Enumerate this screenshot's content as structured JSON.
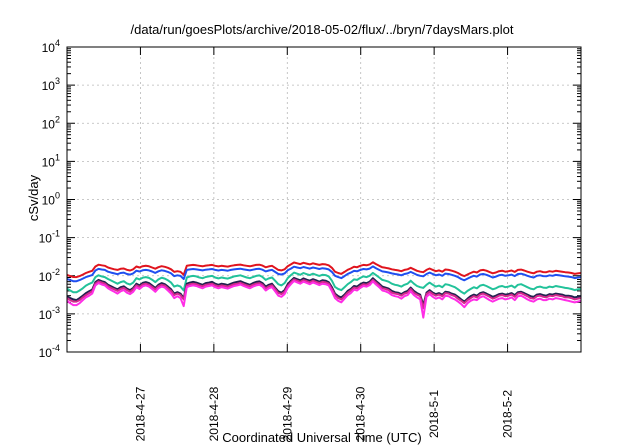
{
  "chart_data": {
    "type": "line",
    "title": "/data/run/goesPlots/archive/2018-05-02/flux/../bryn/7daysMars.plot",
    "xlabel": "Coordinated Universal Time (UTC)",
    "ylabel": "cSv/day",
    "y_scale": "log",
    "ylim_exponents": [
      -4,
      4
    ],
    "y_ticks": [
      {
        "base": "10",
        "exp": "-4"
      },
      {
        "base": "10",
        "exp": "-3"
      },
      {
        "base": "10",
        "exp": "-2"
      },
      {
        "base": "10",
        "exp": "-1"
      },
      {
        "base": "10",
        "exp": "0"
      },
      {
        "base": "10",
        "exp": "1"
      },
      {
        "base": "10",
        "exp": "2"
      },
      {
        "base": "10",
        "exp": "3"
      },
      {
        "base": "10",
        "exp": "4"
      }
    ],
    "x_range_days": [
      "2018-04-26",
      "2018-05-03"
    ],
    "x_ticks": [
      "2018-4-27",
      "2018-4-28",
      "2018-4-29",
      "2018-4-30",
      "2018-5-1",
      "2018-5-2"
    ],
    "grid": true,
    "legend": "none",
    "series": [
      {
        "color": "#e0141e",
        "values": [
          0.0105,
          0.0098,
          0.0093,
          0.0092,
          0.0098,
          0.0107,
          0.0118,
          0.0127,
          0.0135,
          0.0175,
          0.0195,
          0.0188,
          0.0182,
          0.0165,
          0.0156,
          0.0148,
          0.0142,
          0.0152,
          0.0155,
          0.0143,
          0.0137,
          0.0148,
          0.0175,
          0.0165,
          0.0178,
          0.0182,
          0.0177,
          0.0165,
          0.0153,
          0.0168,
          0.0178,
          0.0172,
          0.0162,
          0.0148,
          0.0126,
          0.0132,
          0.0127,
          0.0106,
          0.0182,
          0.0188,
          0.0192,
          0.0188,
          0.0182,
          0.0177,
          0.0185,
          0.0188,
          0.0192,
          0.0182,
          0.0176,
          0.0182,
          0.0178,
          0.0174,
          0.0182,
          0.0188,
          0.0192,
          0.0196,
          0.0188,
          0.0182,
          0.0177,
          0.0185,
          0.0192,
          0.0195,
          0.0185,
          0.0167,
          0.0176,
          0.0182,
          0.0162,
          0.0142,
          0.0138,
          0.0148,
          0.0178,
          0.0198,
          0.0222,
          0.0212,
          0.0202,
          0.0218,
          0.0208,
          0.0198,
          0.0212,
          0.0202,
          0.0192,
          0.0202,
          0.0198,
          0.0188,
          0.0162,
          0.0128,
          0.0118,
          0.0112,
          0.0126,
          0.0143,
          0.0155,
          0.0172,
          0.0168,
          0.0182,
          0.0192,
          0.0188,
          0.0198,
          0.0225,
          0.0202,
          0.0182,
          0.0167,
          0.0162,
          0.0156,
          0.0148,
          0.0142,
          0.0138,
          0.0132,
          0.0142,
          0.0148,
          0.0162,
          0.0148,
          0.0135,
          0.0128,
          0.0124,
          0.0142,
          0.0155,
          0.0142,
          0.0132,
          0.0138,
          0.0128,
          0.0146,
          0.0142,
          0.0136,
          0.0128,
          0.0118,
          0.0105,
          0.0098,
          0.0108,
          0.0118,
          0.0128,
          0.0122,
          0.0138,
          0.0142,
          0.0136,
          0.0125,
          0.0116,
          0.0122,
          0.0132,
          0.0136,
          0.0128,
          0.0132,
          0.0137,
          0.0126,
          0.0142,
          0.0145,
          0.0137,
          0.0128,
          0.0121,
          0.0116,
          0.0128,
          0.0132,
          0.0125,
          0.0124,
          0.0132,
          0.0128,
          0.0135,
          0.0132,
          0.0128,
          0.0124,
          0.0122,
          0.0118,
          0.0112,
          0.0115,
          0.0118
        ]
      },
      {
        "color": "#1f4ff0",
        "values": [
          0.0082,
          0.0077,
          0.0072,
          0.0072,
          0.0077,
          0.0084,
          0.0092,
          0.0098,
          0.0104,
          0.0137,
          0.0151,
          0.0146,
          0.0142,
          0.0128,
          0.0121,
          0.0115,
          0.011,
          0.0118,
          0.0121,
          0.0111,
          0.0107,
          0.0115,
          0.0136,
          0.0129,
          0.0139,
          0.0142,
          0.0138,
          0.0129,
          0.0119,
          0.0131,
          0.0139,
          0.0134,
          0.0126,
          0.0115,
          0.0098,
          0.0103,
          0.0099,
          0.0082,
          0.0142,
          0.0147,
          0.015,
          0.0147,
          0.0142,
          0.0138,
          0.0144,
          0.0147,
          0.015,
          0.0142,
          0.0137,
          0.0142,
          0.0139,
          0.0136,
          0.0142,
          0.0147,
          0.015,
          0.0153,
          0.0147,
          0.0142,
          0.0138,
          0.0144,
          0.015,
          0.0152,
          0.0144,
          0.013,
          0.0137,
          0.0142,
          0.0126,
          0.0111,
          0.0108,
          0.0115,
          0.0139,
          0.0154,
          0.0173,
          0.0165,
          0.0158,
          0.017,
          0.0162,
          0.0154,
          0.0165,
          0.0158,
          0.015,
          0.0158,
          0.0154,
          0.0147,
          0.0126,
          0.01,
          0.0092,
          0.0087,
          0.0098,
          0.0112,
          0.0121,
          0.0134,
          0.0131,
          0.0142,
          0.015,
          0.0147,
          0.0154,
          0.0176,
          0.0158,
          0.0142,
          0.013,
          0.0126,
          0.0122,
          0.0115,
          0.0111,
          0.0108,
          0.0103,
          0.0111,
          0.0115,
          0.0126,
          0.0115,
          0.0105,
          0.01,
          0.0097,
          0.0111,
          0.0121,
          0.0111,
          0.0103,
          0.0108,
          0.01,
          0.0114,
          0.0111,
          0.0106,
          0.01,
          0.0092,
          0.0082,
          0.0076,
          0.0084,
          0.0092,
          0.01,
          0.0095,
          0.0108,
          0.0111,
          0.0106,
          0.0098,
          0.009,
          0.0095,
          0.0103,
          0.0106,
          0.01,
          0.0103,
          0.0107,
          0.0098,
          0.0111,
          0.0113,
          0.0107,
          0.01,
          0.0094,
          0.009,
          0.01,
          0.0103,
          0.0098,
          0.0097,
          0.0103,
          0.01,
          0.0105,
          0.0103,
          0.01,
          0.0097,
          0.0095,
          0.0092,
          0.0087,
          0.009,
          0.0092
        ]
      },
      {
        "color": "#22c29a",
        "values": [
          0.0046,
          0.0041,
          0.0037,
          0.0037,
          0.0041,
          0.0047,
          0.0055,
          0.0061,
          0.0066,
          0.0092,
          0.0103,
          0.0096,
          0.0092,
          0.0082,
          0.0075,
          0.0068,
          0.0062,
          0.0068,
          0.0072,
          0.0063,
          0.0059,
          0.0066,
          0.0086,
          0.008,
          0.0089,
          0.0092,
          0.0088,
          0.0079,
          0.0068,
          0.008,
          0.0089,
          0.0084,
          0.0076,
          0.0066,
          0.0052,
          0.0056,
          0.0052,
          0.0041,
          0.009,
          0.0096,
          0.0099,
          0.0096,
          0.009,
          0.0086,
          0.0093,
          0.0096,
          0.0099,
          0.009,
          0.0085,
          0.009,
          0.0087,
          0.0084,
          0.009,
          0.0096,
          0.0099,
          0.0103,
          0.0096,
          0.009,
          0.0086,
          0.0093,
          0.0099,
          0.0102,
          0.0093,
          0.0078,
          0.0085,
          0.009,
          0.0074,
          0.006,
          0.0056,
          0.0064,
          0.0087,
          0.0104,
          0.0121,
          0.0113,
          0.0106,
          0.0118,
          0.011,
          0.0104,
          0.0113,
          0.0106,
          0.0099,
          0.0106,
          0.0104,
          0.0096,
          0.0074,
          0.0051,
          0.0045,
          0.0042,
          0.005,
          0.006,
          0.0068,
          0.008,
          0.0078,
          0.0088,
          0.0096,
          0.0092,
          0.01,
          0.0119,
          0.0104,
          0.009,
          0.0078,
          0.0074,
          0.007,
          0.0062,
          0.0058,
          0.0056,
          0.0052,
          0.0058,
          0.0062,
          0.0074,
          0.0062,
          0.0054,
          0.005,
          0.0048,
          0.0058,
          0.0066,
          0.0058,
          0.0052,
          0.0055,
          0.005,
          0.006,
          0.0058,
          0.0054,
          0.005,
          0.0044,
          0.0038,
          0.0034,
          0.004,
          0.0045,
          0.005,
          0.0047,
          0.0055,
          0.0058,
          0.0054,
          0.0049,
          0.0044,
          0.0047,
          0.0052,
          0.0054,
          0.005,
          0.0052,
          0.0055,
          0.0049,
          0.0058,
          0.006,
          0.0055,
          0.005,
          0.0046,
          0.0044,
          0.005,
          0.0052,
          0.0049,
          0.0048,
          0.0052,
          0.005,
          0.0054,
          0.0052,
          0.005,
          0.0048,
          0.0047,
          0.0045,
          0.0042,
          0.0044,
          0.0045
        ]
      },
      {
        "color": "#222250",
        "values": [
          0.0029,
          0.0026,
          0.0024,
          0.0023,
          0.0026,
          0.003,
          0.0035,
          0.0039,
          0.0043,
          0.0068,
          0.0078,
          0.0072,
          0.0068,
          0.0058,
          0.0053,
          0.0048,
          0.0044,
          0.005,
          0.0053,
          0.0046,
          0.0042,
          0.0048,
          0.0062,
          0.0056,
          0.0065,
          0.0068,
          0.0064,
          0.0056,
          0.0048,
          0.0058,
          0.0064,
          0.006,
          0.0052,
          0.0044,
          0.0034,
          0.0037,
          0.0034,
          0.0026,
          0.0062,
          0.0066,
          0.0069,
          0.0066,
          0.0062,
          0.0058,
          0.0064,
          0.0066,
          0.0069,
          0.0062,
          0.0058,
          0.0062,
          0.006,
          0.0057,
          0.0062,
          0.0066,
          0.0069,
          0.0072,
          0.0066,
          0.0062,
          0.0058,
          0.0064,
          0.0069,
          0.0071,
          0.0064,
          0.0052,
          0.0058,
          0.0062,
          0.0049,
          0.0039,
          0.0036,
          0.0042,
          0.006,
          0.0074,
          0.0088,
          0.0081,
          0.0076,
          0.0085,
          0.0079,
          0.0074,
          0.0081,
          0.0076,
          0.007,
          0.0076,
          0.0074,
          0.0068,
          0.005,
          0.0034,
          0.0029,
          0.0027,
          0.0032,
          0.004,
          0.0045,
          0.0054,
          0.0052,
          0.006,
          0.0066,
          0.0064,
          0.007,
          0.0086,
          0.0073,
          0.0062,
          0.0052,
          0.0049,
          0.0046,
          0.004,
          0.0037,
          0.0036,
          0.0033,
          0.0037,
          0.004,
          0.0049,
          0.004,
          0.0035,
          0.0032,
          0.0017,
          0.0036,
          0.0042,
          0.0036,
          0.0033,
          0.0035,
          0.0032,
          0.0038,
          0.0037,
          0.0034,
          0.0032,
          0.0028,
          0.0024,
          0.0021,
          0.0025,
          0.0029,
          0.0032,
          0.003,
          0.0035,
          0.0037,
          0.0034,
          0.0031,
          0.0028,
          0.003,
          0.0033,
          0.0034,
          0.0032,
          0.0033,
          0.0035,
          0.0031,
          0.0037,
          0.0038,
          0.0035,
          0.0032,
          0.0029,
          0.0028,
          0.0032,
          0.0033,
          0.0031,
          0.003,
          0.0033,
          0.0032,
          0.0034,
          0.0033,
          0.0032,
          0.003,
          0.003,
          0.0029,
          0.0027,
          0.0028,
          0.0029
        ]
      },
      {
        "color": "#d42a8c",
        "values": [
          0.0026,
          0.0023,
          0.0021,
          0.0021,
          0.0023,
          0.0027,
          0.0031,
          0.0035,
          0.0039,
          0.0062,
          0.0071,
          0.0066,
          0.0062,
          0.0053,
          0.0048,
          0.0044,
          0.004,
          0.0045,
          0.0048,
          0.0042,
          0.0038,
          0.0044,
          0.0056,
          0.0051,
          0.0059,
          0.0062,
          0.0058,
          0.0051,
          0.0044,
          0.0053,
          0.0058,
          0.0055,
          0.0047,
          0.004,
          0.0031,
          0.0034,
          0.0031,
          0.0024,
          0.0056,
          0.006,
          0.0062,
          0.006,
          0.0056,
          0.0053,
          0.0058,
          0.006,
          0.0062,
          0.0056,
          0.0053,
          0.0056,
          0.0054,
          0.0052,
          0.0056,
          0.006,
          0.0062,
          0.0065,
          0.006,
          0.0056,
          0.0053,
          0.0058,
          0.0062,
          0.0064,
          0.0058,
          0.0047,
          0.0053,
          0.0056,
          0.0045,
          0.0035,
          0.0033,
          0.0038,
          0.0054,
          0.0067,
          0.008,
          0.0074,
          0.0069,
          0.0077,
          0.0072,
          0.0067,
          0.0074,
          0.0069,
          0.0064,
          0.0069,
          0.0067,
          0.0062,
          0.0045,
          0.0031,
          0.0026,
          0.0024,
          0.0029,
          0.0036,
          0.0041,
          0.0049,
          0.0047,
          0.0054,
          0.006,
          0.0058,
          0.0064,
          0.0078,
          0.0066,
          0.0056,
          0.0047,
          0.0045,
          0.0042,
          0.0036,
          0.0034,
          0.0033,
          0.003,
          0.0034,
          0.0036,
          0.0045,
          0.0036,
          0.0032,
          0.0029,
          0.0014,
          0.0033,
          0.0038,
          0.0033,
          0.003,
          0.0032,
          0.0029,
          0.0035,
          0.0034,
          0.0031,
          0.0029,
          0.0025,
          0.0022,
          0.0019,
          0.0023,
          0.0026,
          0.0029,
          0.0027,
          0.0032,
          0.0034,
          0.0031,
          0.0028,
          0.0025,
          0.0027,
          0.003,
          0.0031,
          0.0029,
          0.003,
          0.0032,
          0.0028,
          0.0034,
          0.0035,
          0.0032,
          0.0029,
          0.0026,
          0.0025,
          0.0029,
          0.003,
          0.0028,
          0.0027,
          0.003,
          0.0029,
          0.0031,
          0.003,
          0.0029,
          0.0027,
          0.0027,
          0.0026,
          0.0024,
          0.0025,
          0.0026
        ]
      },
      {
        "color": "#ff2ee6",
        "values": [
          0.0022,
          0.0019,
          0.0017,
          0.0017,
          0.0019,
          0.0023,
          0.0027,
          0.003,
          0.0034,
          0.0056,
          0.0064,
          0.0059,
          0.0056,
          0.0047,
          0.0042,
          0.0038,
          0.0034,
          0.0039,
          0.0042,
          0.0036,
          0.0033,
          0.0038,
          0.005,
          0.0045,
          0.0053,
          0.0056,
          0.0052,
          0.0045,
          0.0038,
          0.0047,
          0.0052,
          0.0049,
          0.0041,
          0.0034,
          0.0026,
          0.0029,
          0.0026,
          0.0016,
          0.005,
          0.0054,
          0.0056,
          0.0054,
          0.005,
          0.0047,
          0.0052,
          0.0054,
          0.0056,
          0.005,
          0.0047,
          0.005,
          0.0048,
          0.0046,
          0.005,
          0.0054,
          0.0056,
          0.0059,
          0.0054,
          0.005,
          0.0047,
          0.0052,
          0.0056,
          0.0058,
          0.0052,
          0.0041,
          0.0047,
          0.005,
          0.0039,
          0.003,
          0.0028,
          0.0033,
          0.0048,
          0.006,
          0.0073,
          0.0067,
          0.0062,
          0.007,
          0.0065,
          0.006,
          0.0067,
          0.0062,
          0.0057,
          0.0062,
          0.006,
          0.0056,
          0.0039,
          0.0026,
          0.0022,
          0.002,
          0.0025,
          0.0031,
          0.0035,
          0.0043,
          0.0041,
          0.0048,
          0.0054,
          0.0052,
          0.0057,
          0.0071,
          0.0059,
          0.005,
          0.0041,
          0.0039,
          0.0036,
          0.0031,
          0.0029,
          0.0028,
          0.0025,
          0.0029,
          0.0031,
          0.0039,
          0.0031,
          0.0027,
          0.0024,
          0.0008,
          0.0028,
          0.0033,
          0.0028,
          0.0025,
          0.0027,
          0.0024,
          0.003,
          0.0029,
          0.0026,
          0.0024,
          0.0021,
          0.0018,
          0.0015,
          0.0019,
          0.0022,
          0.0024,
          0.0023,
          0.0027,
          0.0029,
          0.0026,
          0.0023,
          0.0021,
          0.0023,
          0.0025,
          0.0026,
          0.0024,
          0.0025,
          0.0027,
          0.0023,
          0.0029,
          0.003,
          0.0027,
          0.0024,
          0.0022,
          0.0021,
          0.0024,
          0.0025,
          0.0023,
          0.0023,
          0.0025,
          0.0024,
          0.0026,
          0.0025,
          0.0024,
          0.0023,
          0.0022,
          0.0021,
          0.002,
          0.0021,
          0.0022
        ]
      }
    ]
  }
}
